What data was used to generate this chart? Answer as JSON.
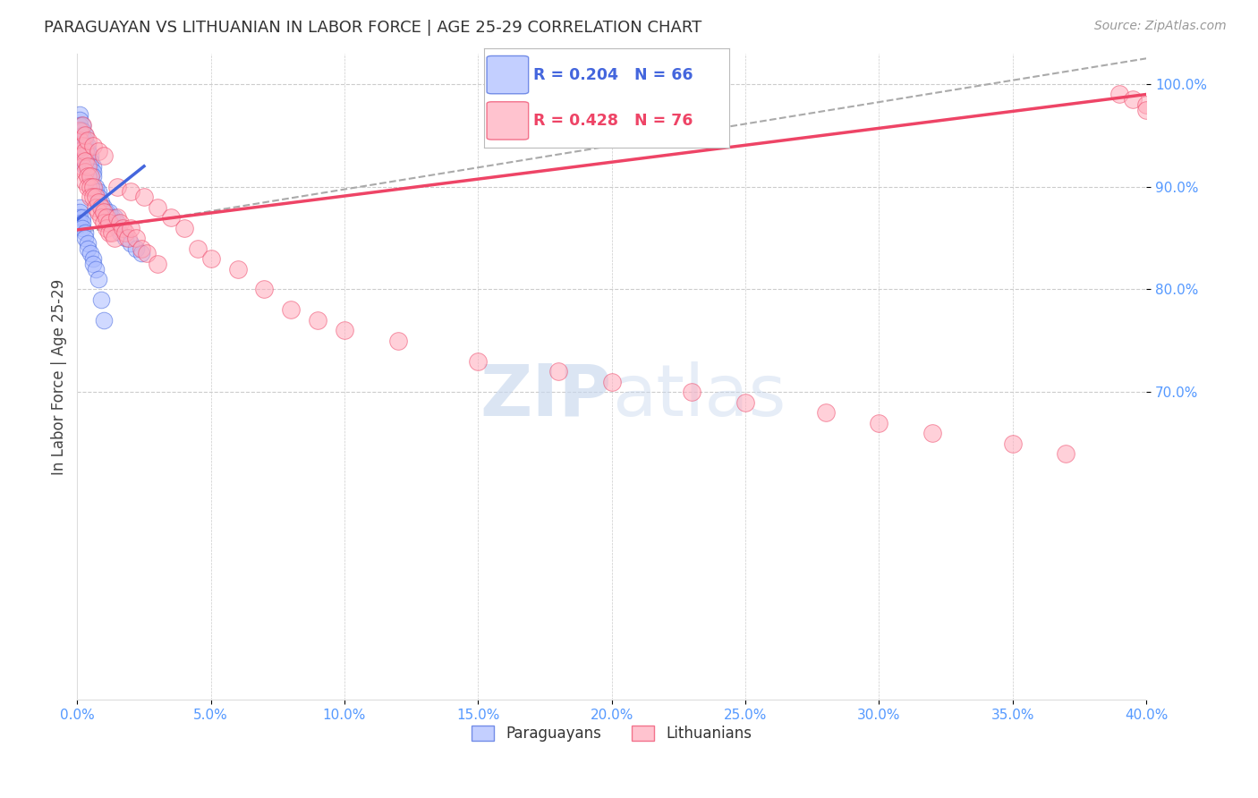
{
  "title": "PARAGUAYAN VS LITHUANIAN IN LABOR FORCE | AGE 25-29 CORRELATION CHART",
  "source_text": "Source: ZipAtlas.com",
  "ylabel": "In Labor Force | Age 25-29",
  "legend_entries": [
    "Paraguayans",
    "Lithuanians"
  ],
  "blue_label": "R = 0.204   N = 66",
  "pink_label": "R = 0.428   N = 76",
  "blue_color": "#aabbff",
  "pink_color": "#ffaabb",
  "trend_blue": "#4466dd",
  "trend_pink": "#ee4466",
  "xmin": 0.0,
  "xmax": 0.4,
  "ymin": 0.4,
  "ymax": 1.03,
  "blue_x": [
    0.001,
    0.001,
    0.001,
    0.001,
    0.002,
    0.002,
    0.002,
    0.002,
    0.002,
    0.003,
    0.003,
    0.003,
    0.003,
    0.003,
    0.003,
    0.003,
    0.004,
    0.004,
    0.004,
    0.004,
    0.004,
    0.005,
    0.005,
    0.005,
    0.005,
    0.006,
    0.006,
    0.006,
    0.007,
    0.007,
    0.008,
    0.008,
    0.009,
    0.009,
    0.01,
    0.01,
    0.011,
    0.012,
    0.012,
    0.013,
    0.014,
    0.015,
    0.015,
    0.016,
    0.018,
    0.02,
    0.022,
    0.024,
    0.001,
    0.001,
    0.001,
    0.001,
    0.002,
    0.002,
    0.002,
    0.003,
    0.003,
    0.004,
    0.004,
    0.005,
    0.006,
    0.006,
    0.007,
    0.008,
    0.009,
    0.01
  ],
  "blue_y": [
    0.97,
    0.965,
    0.96,
    0.955,
    0.96,
    0.955,
    0.95,
    0.945,
    0.94,
    0.95,
    0.945,
    0.94,
    0.935,
    0.93,
    0.925,
    0.92,
    0.94,
    0.935,
    0.93,
    0.925,
    0.92,
    0.93,
    0.925,
    0.92,
    0.91,
    0.92,
    0.915,
    0.91,
    0.9,
    0.895,
    0.895,
    0.89,
    0.885,
    0.88,
    0.88,
    0.875,
    0.875,
    0.875,
    0.87,
    0.87,
    0.87,
    0.865,
    0.86,
    0.855,
    0.85,
    0.845,
    0.84,
    0.835,
    0.88,
    0.875,
    0.87,
    0.865,
    0.87,
    0.865,
    0.86,
    0.855,
    0.85,
    0.845,
    0.84,
    0.835,
    0.83,
    0.825,
    0.82,
    0.81,
    0.79,
    0.77
  ],
  "pink_x": [
    0.001,
    0.001,
    0.001,
    0.002,
    0.002,
    0.002,
    0.003,
    0.003,
    0.003,
    0.003,
    0.004,
    0.004,
    0.004,
    0.005,
    0.005,
    0.005,
    0.006,
    0.006,
    0.007,
    0.007,
    0.008,
    0.008,
    0.009,
    0.009,
    0.01,
    0.01,
    0.011,
    0.011,
    0.012,
    0.012,
    0.013,
    0.014,
    0.015,
    0.016,
    0.017,
    0.018,
    0.019,
    0.02,
    0.022,
    0.024,
    0.026,
    0.03,
    0.002,
    0.003,
    0.004,
    0.006,
    0.008,
    0.01,
    0.015,
    0.02,
    0.025,
    0.03,
    0.035,
    0.04,
    0.045,
    0.05,
    0.06,
    0.07,
    0.08,
    0.09,
    0.1,
    0.12,
    0.15,
    0.18,
    0.2,
    0.23,
    0.25,
    0.28,
    0.3,
    0.32,
    0.35,
    0.37,
    0.39,
    0.395,
    0.4,
    0.4
  ],
  "pink_y": [
    0.955,
    0.945,
    0.935,
    0.94,
    0.93,
    0.92,
    0.935,
    0.925,
    0.915,
    0.905,
    0.92,
    0.91,
    0.9,
    0.91,
    0.9,
    0.89,
    0.9,
    0.89,
    0.89,
    0.88,
    0.885,
    0.875,
    0.88,
    0.87,
    0.875,
    0.865,
    0.87,
    0.86,
    0.865,
    0.855,
    0.855,
    0.85,
    0.87,
    0.865,
    0.86,
    0.855,
    0.85,
    0.86,
    0.85,
    0.84,
    0.835,
    0.825,
    0.96,
    0.95,
    0.945,
    0.94,
    0.935,
    0.93,
    0.9,
    0.895,
    0.89,
    0.88,
    0.87,
    0.86,
    0.84,
    0.83,
    0.82,
    0.8,
    0.78,
    0.77,
    0.76,
    0.75,
    0.73,
    0.72,
    0.71,
    0.7,
    0.69,
    0.68,
    0.67,
    0.66,
    0.65,
    0.64,
    0.99,
    0.985,
    0.98,
    0.975
  ],
  "watermark_zip": "ZIP",
  "watermark_atlas": "atlas",
  "background_color": "#ffffff",
  "grid_color": "#cccccc",
  "tick_color": "#5599ff",
  "title_fontsize": 13,
  "label_fontsize": 12,
  "tick_fontsize": 11,
  "source_fontsize": 10
}
